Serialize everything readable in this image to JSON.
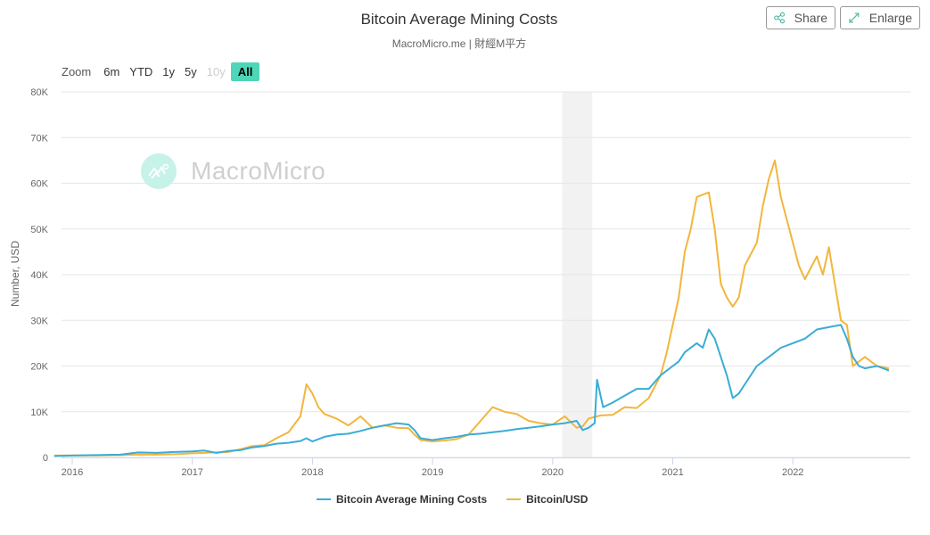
{
  "header": {
    "title": "Bitcoin Average Mining Costs",
    "subtitle": "MacroMicro.me | 財經M平方",
    "share_label": "Share",
    "enlarge_label": "Enlarge"
  },
  "range_selector": {
    "label": "Zoom",
    "buttons": [
      {
        "label": "6m",
        "state": "normal"
      },
      {
        "label": "YTD",
        "state": "normal"
      },
      {
        "label": "1y",
        "state": "normal"
      },
      {
        "label": "5y",
        "state": "normal"
      },
      {
        "label": "10y",
        "state": "disabled"
      },
      {
        "label": "All",
        "state": "active"
      }
    ]
  },
  "watermark": "MacroMicro",
  "colors": {
    "mining_cost": "#3aacd6",
    "btc_usd": "#f2b63d",
    "accent": "#4ed6b8",
    "recession_band": "#f2f2f2",
    "grid": "#e6e6e6"
  },
  "chart_data": {
    "type": "line",
    "title": "Bitcoin Average Mining Costs",
    "subtitle": "MacroMicro.me | 財經M平方",
    "xlabel": "",
    "ylabel": "Number, USD",
    "xlim": [
      2015.85,
      2022.83
    ],
    "ylim": [
      0,
      80000
    ],
    "grid": true,
    "x_ticks": [
      "2016",
      "2017",
      "2018",
      "2019",
      "2020",
      "2021",
      "2022"
    ],
    "y_ticks": [
      "0",
      "10K",
      "20K",
      "30K",
      "40K",
      "50K",
      "60K",
      "70K",
      "80K"
    ],
    "shaded_ranges": [
      [
        2020.08,
        2020.33
      ]
    ],
    "legend_position": "bottom-center",
    "series": [
      {
        "name": "Bitcoin Average Mining Costs",
        "x": [
          2015.85,
          2016.0,
          2016.2,
          2016.4,
          2016.55,
          2016.7,
          2016.85,
          2017.0,
          2017.1,
          2017.2,
          2017.3,
          2017.4,
          2017.5,
          2017.6,
          2017.7,
          2017.8,
          2017.9,
          2017.95,
          2018.0,
          2018.1,
          2018.2,
          2018.3,
          2018.4,
          2018.5,
          2018.6,
          2018.7,
          2018.8,
          2018.85,
          2018.9,
          2019.0,
          2019.1,
          2019.2,
          2019.3,
          2019.4,
          2019.5,
          2019.6,
          2019.7,
          2019.8,
          2019.9,
          2020.0,
          2020.1,
          2020.2,
          2020.25,
          2020.3,
          2020.35,
          2020.37,
          2020.42,
          2020.5,
          2020.6,
          2020.7,
          2020.8,
          2020.9,
          2021.0,
          2021.05,
          2021.1,
          2021.2,
          2021.25,
          2021.3,
          2021.35,
          2021.4,
          2021.45,
          2021.5,
          2021.55,
          2021.6,
          2021.7,
          2021.8,
          2021.9,
          2022.0,
          2022.1,
          2022.2,
          2022.3,
          2022.4,
          2022.45,
          2022.5,
          2022.55,
          2022.6,
          2022.7,
          2022.8
        ],
        "values": [
          300,
          400,
          500,
          600,
          1100,
          1000,
          1200,
          1300,
          1500,
          1000,
          1400,
          1600,
          2200,
          2500,
          3000,
          3200,
          3600,
          4200,
          3500,
          4500,
          5000,
          5200,
          5800,
          6500,
          7000,
          7500,
          7200,
          6000,
          4200,
          3800,
          4200,
          4500,
          5000,
          5200,
          5500,
          5800,
          6200,
          6500,
          6800,
          7200,
          7500,
          8000,
          6000,
          6500,
          7500,
          17000,
          11000,
          12000,
          13500,
          15000,
          15000,
          18000,
          20000,
          21000,
          23000,
          25000,
          24000,
          28000,
          26000,
          22000,
          18000,
          13000,
          14000,
          16000,
          20000,
          22000,
          24000,
          25000,
          26000,
          28000,
          28500,
          29000,
          26000,
          22000,
          20000,
          19500,
          20000,
          19000
        ]
      },
      {
        "name": "Bitcoin/USD",
        "x": [
          2015.85,
          2016.0,
          2016.2,
          2016.4,
          2016.55,
          2016.7,
          2016.85,
          2017.0,
          2017.1,
          2017.2,
          2017.3,
          2017.4,
          2017.5,
          2017.6,
          2017.7,
          2017.8,
          2017.9,
          2017.95,
          2018.0,
          2018.05,
          2018.1,
          2018.2,
          2018.3,
          2018.4,
          2018.5,
          2018.6,
          2018.7,
          2018.8,
          2018.85,
          2018.9,
          2019.0,
          2019.1,
          2019.2,
          2019.3,
          2019.4,
          2019.5,
          2019.55,
          2019.6,
          2019.7,
          2019.8,
          2019.9,
          2020.0,
          2020.1,
          2020.2,
          2020.25,
          2020.3,
          2020.4,
          2020.5,
          2020.6,
          2020.7,
          2020.8,
          2020.9,
          2020.95,
          2021.0,
          2021.05,
          2021.1,
          2021.15,
          2021.2,
          2021.3,
          2021.35,
          2021.4,
          2021.45,
          2021.5,
          2021.55,
          2021.6,
          2021.7,
          2021.75,
          2021.8,
          2021.85,
          2021.9,
          2022.0,
          2022.05,
          2022.1,
          2022.2,
          2022.25,
          2022.3,
          2022.35,
          2022.4,
          2022.45,
          2022.5,
          2022.6,
          2022.7,
          2022.8
        ],
        "values": [
          400,
          430,
          420,
          500,
          650,
          600,
          700,
          900,
          1000,
          1100,
          1200,
          1800,
          2500,
          2700,
          4200,
          5500,
          9000,
          16000,
          14000,
          11000,
          9500,
          8500,
          7000,
          9000,
          6500,
          7000,
          6500,
          6400,
          5000,
          3800,
          3500,
          3700,
          4000,
          5000,
          8000,
          11000,
          10500,
          10000,
          9500,
          8000,
          7500,
          7200,
          9000,
          6500,
          6800,
          8500,
          9200,
          9300,
          11000,
          10800,
          13000,
          18000,
          23000,
          29000,
          35000,
          45000,
          50000,
          57000,
          58000,
          50000,
          38000,
          35000,
          33000,
          35000,
          42000,
          47000,
          55000,
          61000,
          65000,
          57000,
          47000,
          42000,
          39000,
          44000,
          40000,
          46000,
          38000,
          30000,
          29000,
          20000,
          22000,
          20000,
          19500
        ]
      }
    ]
  },
  "legend": {
    "items": [
      {
        "label": "Bitcoin Average Mining Costs"
      },
      {
        "label": "Bitcoin/USD"
      }
    ]
  }
}
